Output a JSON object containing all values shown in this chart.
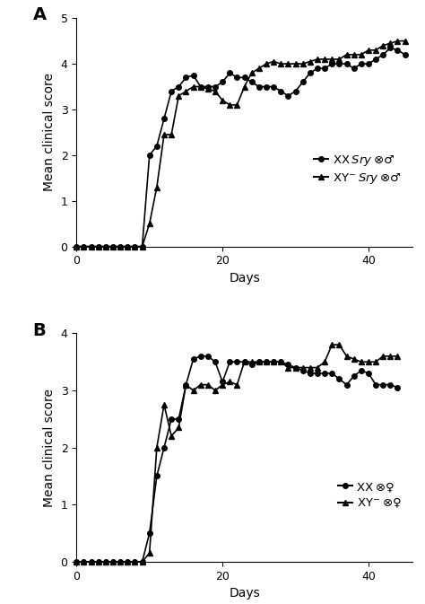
{
  "panel_A": {
    "xx_sry_days": [
      0,
      1,
      2,
      3,
      4,
      5,
      6,
      7,
      8,
      9,
      10,
      11,
      12,
      13,
      14,
      15,
      16,
      17,
      18,
      19,
      20,
      21,
      22,
      23,
      24,
      25,
      26,
      27,
      28,
      29,
      30,
      31,
      32,
      33,
      34,
      35,
      36,
      37,
      38,
      39,
      40,
      41,
      42,
      43,
      44,
      45
    ],
    "xx_sry_scores": [
      0,
      0,
      0,
      0,
      0,
      0,
      0,
      0,
      0,
      0,
      2.0,
      2.2,
      2.8,
      3.4,
      3.5,
      3.7,
      3.75,
      3.5,
      3.5,
      3.5,
      3.6,
      3.8,
      3.7,
      3.7,
      3.6,
      3.5,
      3.5,
      3.5,
      3.4,
      3.3,
      3.4,
      3.6,
      3.8,
      3.9,
      3.9,
      4.0,
      4.0,
      4.0,
      3.9,
      4.0,
      4.0,
      4.1,
      4.2,
      4.35,
      4.3,
      4.2
    ],
    "xy_sry_days": [
      0,
      1,
      2,
      3,
      4,
      5,
      6,
      7,
      8,
      9,
      10,
      11,
      12,
      13,
      14,
      15,
      16,
      17,
      18,
      19,
      20,
      21,
      22,
      23,
      24,
      25,
      26,
      27,
      28,
      29,
      30,
      31,
      32,
      33,
      34,
      35,
      36,
      37,
      38,
      39,
      40,
      41,
      42,
      43,
      44,
      45
    ],
    "xy_sry_scores": [
      0,
      0,
      0,
      0,
      0,
      0,
      0,
      0,
      0,
      0,
      0.5,
      1.3,
      2.45,
      2.45,
      3.3,
      3.4,
      3.5,
      3.5,
      3.45,
      3.4,
      3.2,
      3.1,
      3.1,
      3.5,
      3.8,
      3.9,
      4.0,
      4.05,
      4.0,
      4.0,
      4.0,
      4.0,
      4.05,
      4.1,
      4.1,
      4.1,
      4.1,
      4.2,
      4.2,
      4.2,
      4.3,
      4.3,
      4.4,
      4.45,
      4.5,
      4.5
    ],
    "ylabel": "Mean clinical score",
    "xlabel": "Days",
    "ylim": [
      0,
      5
    ],
    "yticks": [
      0,
      1,
      2,
      3,
      4,
      5
    ],
    "xlim": [
      0,
      46
    ],
    "xticks": [
      0,
      20,
      40
    ],
    "label_A": "A"
  },
  "panel_B": {
    "xx_days": [
      0,
      1,
      2,
      3,
      4,
      5,
      6,
      7,
      8,
      9,
      10,
      11,
      12,
      13,
      14,
      15,
      16,
      17,
      18,
      19,
      20,
      21,
      22,
      23,
      24,
      25,
      26,
      27,
      28,
      29,
      30,
      31,
      32,
      33,
      34,
      35,
      36,
      37,
      38,
      39,
      40,
      41,
      42,
      43,
      44
    ],
    "xx_scores": [
      0,
      0,
      0,
      0,
      0,
      0,
      0,
      0,
      0,
      0,
      0.5,
      1.5,
      2.0,
      2.5,
      2.5,
      3.1,
      3.55,
      3.6,
      3.6,
      3.5,
      3.15,
      3.5,
      3.5,
      3.5,
      3.45,
      3.5,
      3.5,
      3.5,
      3.5,
      3.45,
      3.4,
      3.35,
      3.3,
      3.3,
      3.3,
      3.3,
      3.2,
      3.1,
      3.25,
      3.35,
      3.3,
      3.1,
      3.1,
      3.1,
      3.05
    ],
    "xy_days": [
      0,
      1,
      2,
      3,
      4,
      5,
      6,
      7,
      8,
      9,
      10,
      11,
      12,
      13,
      14,
      15,
      16,
      17,
      18,
      19,
      20,
      21,
      22,
      23,
      24,
      25,
      26,
      27,
      28,
      29,
      30,
      31,
      32,
      33,
      34,
      35,
      36,
      37,
      38,
      39,
      40,
      41,
      42,
      43,
      44
    ],
    "xy_scores": [
      0,
      0,
      0,
      0,
      0,
      0,
      0,
      0,
      0,
      0,
      0.15,
      2.0,
      2.75,
      2.2,
      2.35,
      3.1,
      3.0,
      3.1,
      3.1,
      3.0,
      3.1,
      3.15,
      3.1,
      3.5,
      3.5,
      3.5,
      3.5,
      3.5,
      3.5,
      3.4,
      3.4,
      3.4,
      3.4,
      3.4,
      3.5,
      3.8,
      3.8,
      3.6,
      3.55,
      3.5,
      3.5,
      3.5,
      3.6,
      3.6,
      3.6
    ],
    "ylabel": "Mean clinical score",
    "xlabel": "Days",
    "ylim": [
      0,
      4
    ],
    "yticks": [
      0,
      1,
      2,
      3,
      4
    ],
    "xlim": [
      0,
      46
    ],
    "xticks": [
      0,
      20,
      40
    ],
    "label_B": "B"
  },
  "line_color": "#000000",
  "marker_circle": "o",
  "marker_triangle": "^",
  "markersize": 4,
  "linewidth": 1.2,
  "fontsize_label": 10,
  "fontsize_tick": 9,
  "fontsize_panel": 14,
  "fontsize_legend": 9.5
}
